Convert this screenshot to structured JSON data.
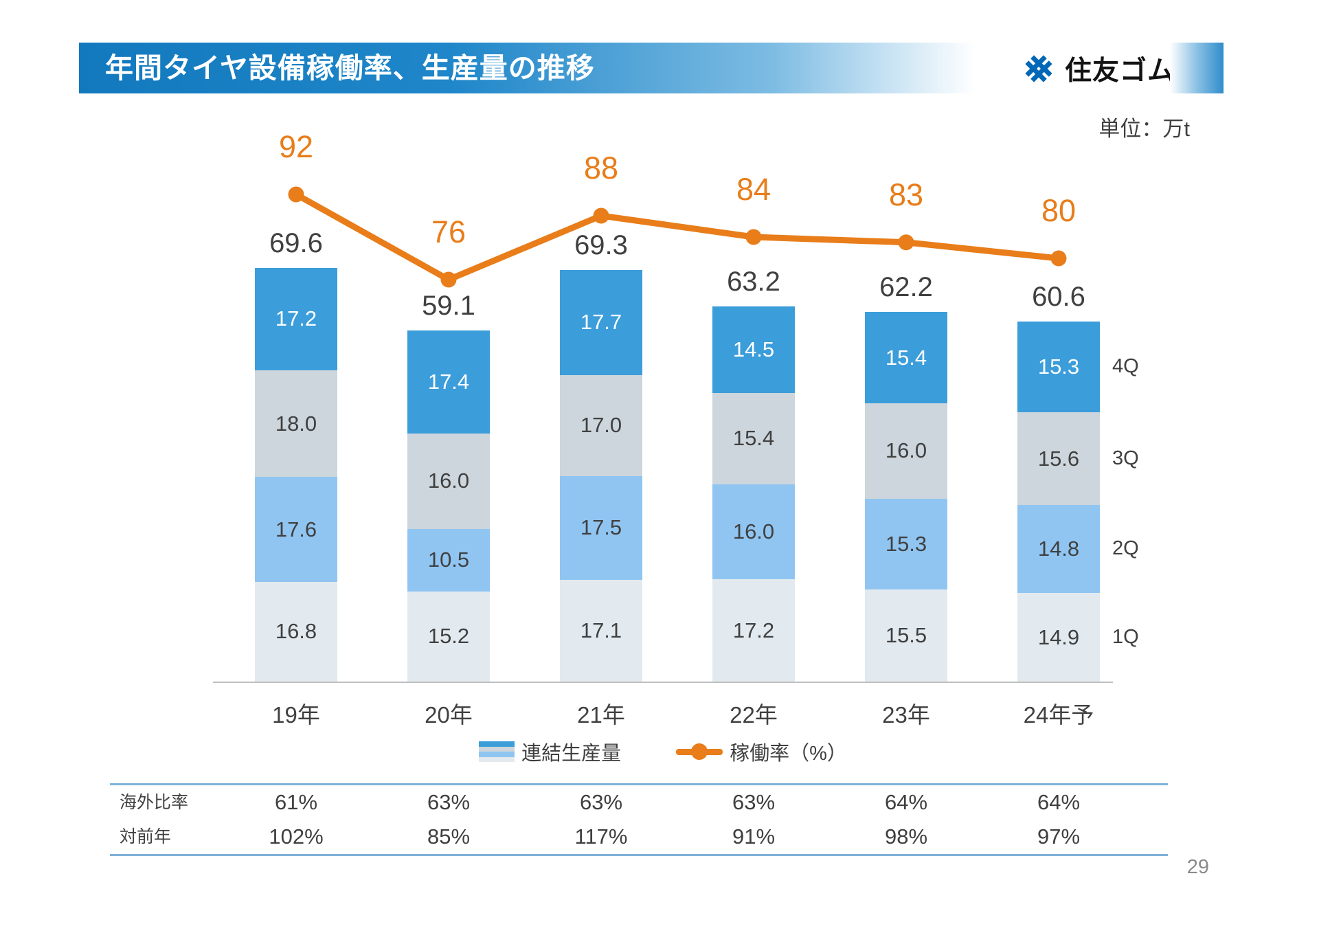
{
  "slide": {
    "title": "年間タイヤ設備稼働率、生産量の推移",
    "logo_text": "住友ゴム",
    "unit_label": "単位：万t",
    "page_number": "29"
  },
  "chart_data": {
    "type": "bar",
    "subtype": "stacked-bar-with-line",
    "title": "年間タイヤ設備稼働率、生産量の推移",
    "ylabel": "万t",
    "categories": [
      "19年",
      "20年",
      "21年",
      "22年",
      "23年",
      "24年予"
    ],
    "series": [
      {
        "name": "1Q",
        "values": [
          16.8,
          15.2,
          17.1,
          17.2,
          15.5,
          14.9
        ],
        "color": "#E2EAF0",
        "label_color": "#404040"
      },
      {
        "name": "2Q",
        "values": [
          17.6,
          10.5,
          17.5,
          16.0,
          15.3,
          14.8
        ],
        "color": "#90C5F2",
        "label_color": "#404040"
      },
      {
        "name": "3Q",
        "values": [
          18.0,
          16.0,
          17.0,
          15.4,
          16.0,
          15.6
        ],
        "color": "#CCD6DC",
        "label_color": "#404040"
      },
      {
        "name": "4Q",
        "values": [
          17.2,
          17.4,
          17.7,
          14.5,
          15.4,
          15.3
        ],
        "color": "#3B9DDA",
        "label_color": "#FFFFFF"
      }
    ],
    "totals": [
      69.6,
      59.1,
      69.3,
      63.2,
      62.2,
      60.6
    ],
    "line": {
      "name": "稼働率（%）",
      "values": [
        92,
        76,
        88,
        84,
        83,
        80
      ],
      "color": "#E87D1A"
    },
    "quarter_axis_labels": [
      "1Q",
      "2Q",
      "3Q",
      "4Q"
    ],
    "legend": [
      {
        "label": "連結生産量"
      },
      {
        "label": "稼働率（%）"
      }
    ],
    "grid": false,
    "legend_position": "bottom"
  },
  "table": {
    "rows": [
      {
        "label": "海外比率",
        "values": [
          "61%",
          "63%",
          "63%",
          "63%",
          "64%",
          "64%"
        ]
      },
      {
        "label": "対前年",
        "values": [
          "102%",
          "85%",
          "117%",
          "91%",
          "98%",
          "97%"
        ]
      }
    ]
  }
}
